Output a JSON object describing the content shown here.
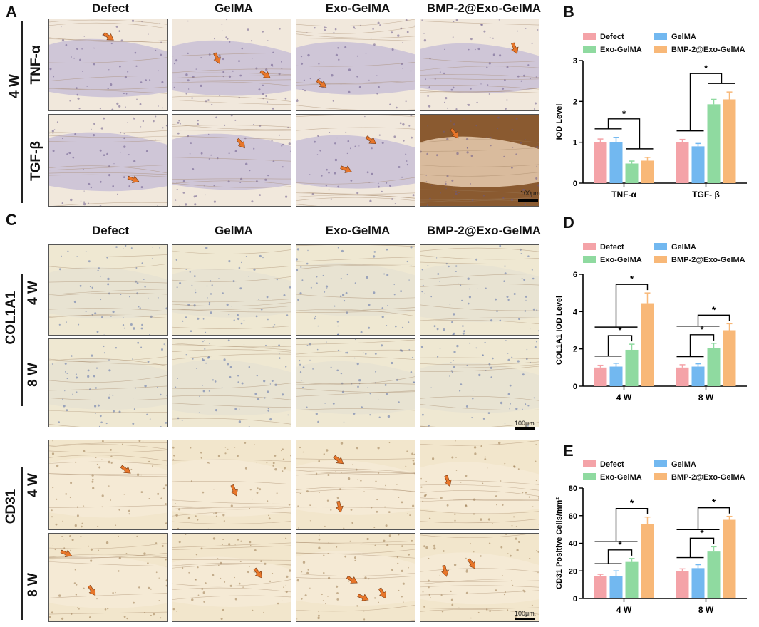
{
  "figure": {
    "panel_letters": [
      "A",
      "B",
      "C",
      "D",
      "E"
    ],
    "column_headers": [
      "Defect",
      "GelMA",
      "Exo-GelMA",
      "BMP-2@Exo-GelMA"
    ],
    "panel_a": {
      "time_label": "4 W",
      "row_labels": [
        "TNF-α",
        "TGF-β"
      ],
      "scale_bar": "100μm"
    },
    "panel_c": {
      "col1a1_label": "COL1A1",
      "cd31_label": "CD31",
      "time_labels": [
        "4 W",
        "8 W"
      ],
      "scale_bar": "100μm"
    }
  },
  "colors": {
    "Defect": "#f4a3a8",
    "GelMA": "#72b8f0",
    "Exo-GelMA": "#8fdaa0",
    "BMP-2@Exo-GelMA": "#f8b878",
    "arrow": "#e8762a"
  },
  "chart_data": [
    {
      "panel": "B",
      "type": "bar",
      "categories": [
        "TNF-α",
        "TGF- β"
      ],
      "series": [
        {
          "name": "Defect",
          "values": [
            1.0,
            1.0
          ],
          "errors": [
            0.08,
            0.07
          ]
        },
        {
          "name": "GelMA",
          "values": [
            1.0,
            0.9
          ],
          "errors": [
            0.12,
            0.07
          ]
        },
        {
          "name": "Exo-GelMA",
          "values": [
            0.48,
            1.93
          ],
          "errors": [
            0.06,
            0.12
          ]
        },
        {
          "name": "BMP-2@Exo-GelMA",
          "values": [
            0.55,
            2.05
          ],
          "errors": [
            0.08,
            0.18
          ]
        }
      ],
      "ylabel": "IOD Level",
      "ylim": [
        0,
        3
      ],
      "yticks": [
        0,
        1,
        2,
        3
      ],
      "significance": "*",
      "legend": "top"
    },
    {
      "panel": "D",
      "type": "bar",
      "categories": [
        "4 W",
        "8 W"
      ],
      "series": [
        {
          "name": "Defect",
          "values": [
            1.0,
            1.0
          ],
          "errors": [
            0.12,
            0.15
          ]
        },
        {
          "name": "GelMA",
          "values": [
            1.05,
            1.05
          ],
          "errors": [
            0.18,
            0.15
          ]
        },
        {
          "name": "Exo-GelMA",
          "values": [
            1.95,
            2.05
          ],
          "errors": [
            0.3,
            0.25
          ]
        },
        {
          "name": "BMP-2@Exo-GelMA",
          "values": [
            4.45,
            3.0
          ],
          "errors": [
            0.55,
            0.35
          ]
        }
      ],
      "ylabel": "COL1A1 IOD Level",
      "ylim": [
        0,
        6
      ],
      "yticks": [
        0,
        2,
        4,
        6
      ],
      "significance": "*",
      "legend": "top"
    },
    {
      "panel": "E",
      "type": "bar",
      "categories": [
        "4 W",
        "8 W"
      ],
      "series": [
        {
          "name": "Defect",
          "values": [
            16,
            20
          ],
          "errors": [
            1.5,
            1.5
          ]
        },
        {
          "name": "GelMA",
          "values": [
            16,
            22
          ],
          "errors": [
            4,
            2.5
          ]
        },
        {
          "name": "Exo-GelMA",
          "values": [
            26.5,
            34
          ],
          "errors": [
            2.5,
            3.5
          ]
        },
        {
          "name": "BMP-2@Exo-GelMA",
          "values": [
            54,
            57
          ],
          "errors": [
            5,
            2.5
          ]
        }
      ],
      "ylabel": "CD31 Positive Cells/mm²",
      "ylim": [
        0,
        80
      ],
      "yticks": [
        0,
        20,
        40,
        60,
        80
      ],
      "significance": "*",
      "legend": "top"
    }
  ]
}
